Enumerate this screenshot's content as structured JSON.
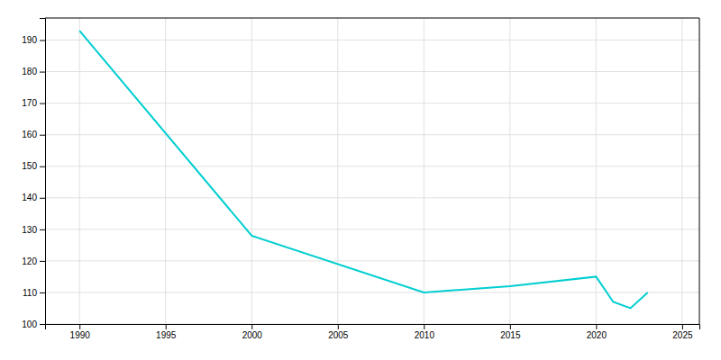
{
  "chart_data": {
    "type": "line",
    "x": [
      1990,
      2000,
      2010,
      2015,
      2020,
      2021,
      2022,
      2023
    ],
    "values": [
      193,
      128,
      110,
      112,
      115,
      107,
      105,
      110
    ],
    "color": "#00CED1",
    "xlim": [
      1988,
      2026
    ],
    "ylim": [
      100,
      197
    ],
    "xticks": [
      1990,
      1995,
      2000,
      2005,
      2010,
      2015,
      2020,
      2025
    ],
    "yticks": [
      100,
      110,
      120,
      130,
      140,
      150,
      160,
      170,
      180,
      190
    ],
    "grid": true
  }
}
